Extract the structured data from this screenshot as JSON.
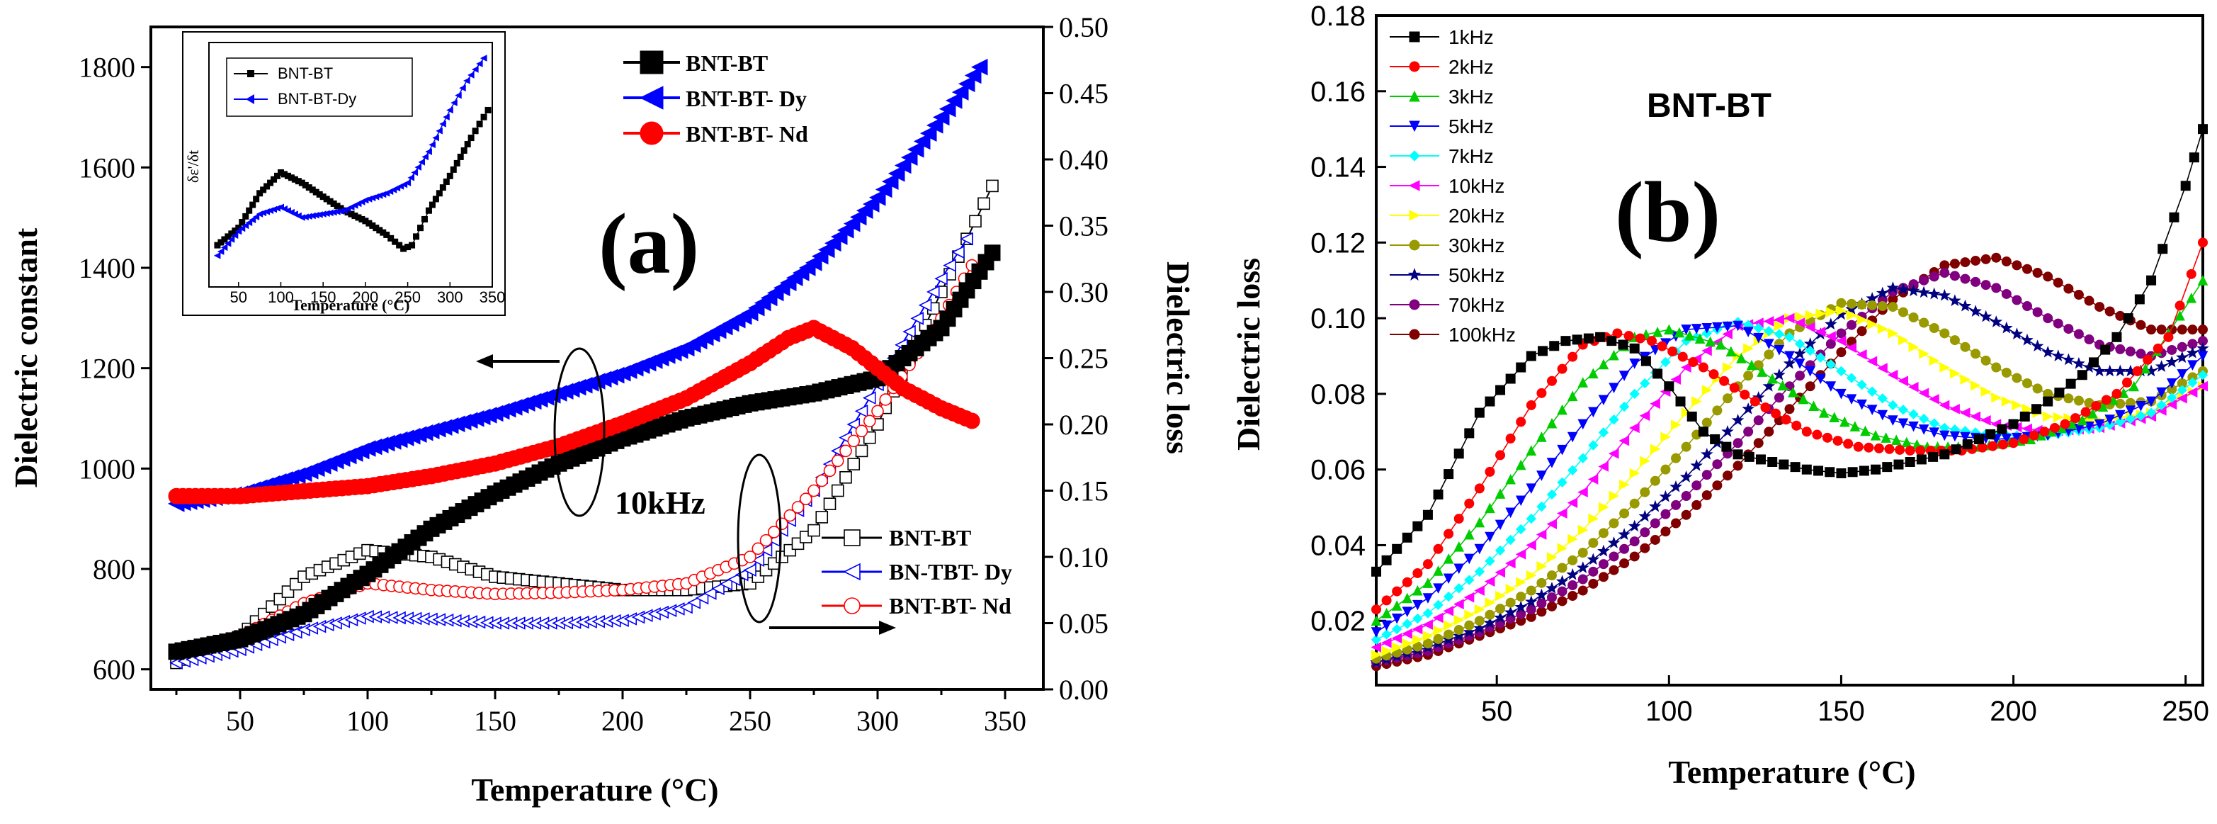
{
  "chart_data": [
    {
      "id": "a",
      "type": "line",
      "panel_label": "(a)",
      "xlabel": "Temperature (°C)",
      "ylabel": "Dielectric constant",
      "y2label": "Dielectric loss",
      "xlim": [
        15,
        365
      ],
      "ylim": [
        560,
        1880
      ],
      "y2lim": [
        0,
        0.5
      ],
      "xticks": [
        "50",
        "100",
        "150",
        "200",
        "250",
        "300",
        "350"
      ],
      "yticks": [
        "600",
        "800",
        "1000",
        "1200",
        "1400",
        "1600",
        "1800"
      ],
      "y2ticks": [
        "0.00",
        "0.05",
        "0.10",
        "0.15",
        "0.20",
        "0.25",
        "0.30",
        "0.35",
        "0.40",
        "0.45",
        "0.50"
      ],
      "annotation": "10kHz",
      "legend_constant": [
        "BNT-BT",
        "BNT-BT- Dy",
        "BNT-BT- Nd"
      ],
      "legend_loss": [
        "BNT-BT",
        "BN-TBT- Dy",
        "BNT-BT- Nd"
      ],
      "series_constant": [
        {
          "name": "BNT-BT",
          "color": "#000000",
          "marker": "square-filled",
          "x": [
            25,
            50,
            75,
            100,
            125,
            150,
            175,
            200,
            225,
            250,
            275,
            300,
            325,
            345
          ],
          "y": [
            635,
            660,
            710,
            790,
            880,
            950,
            1010,
            1060,
            1100,
            1130,
            1150,
            1180,
            1280,
            1430
          ]
        },
        {
          "name": "BNT-BT- Dy",
          "color": "#0000ff",
          "marker": "triangle-left-filled",
          "x": [
            25,
            50,
            75,
            100,
            125,
            150,
            175,
            200,
            225,
            250,
            275,
            300,
            325,
            340
          ],
          "y": [
            930,
            950,
            990,
            1040,
            1075,
            1110,
            1150,
            1190,
            1240,
            1310,
            1410,
            1540,
            1700,
            1800
          ]
        },
        {
          "name": "BNT-BT- Nd",
          "color": "#ff0000",
          "marker": "circle-filled",
          "x": [
            25,
            50,
            75,
            100,
            125,
            150,
            175,
            200,
            225,
            250,
            265,
            275,
            290,
            310,
            325,
            337
          ],
          "y": [
            945,
            945,
            955,
            965,
            985,
            1010,
            1045,
            1090,
            1140,
            1210,
            1260,
            1280,
            1240,
            1160,
            1120,
            1095
          ]
        }
      ],
      "series_loss": [
        {
          "name": "BNT-BT",
          "color": "#000000",
          "marker": "square-open",
          "x": [
            25,
            50,
            75,
            100,
            125,
            150,
            175,
            200,
            225,
            250,
            275,
            300,
            325,
            345
          ],
          "y": [
            0.02,
            0.04,
            0.085,
            0.105,
            0.1,
            0.085,
            0.08,
            0.075,
            0.075,
            0.08,
            0.12,
            0.2,
            0.3,
            0.38
          ]
        },
        {
          "name": "BN-TBT- Dy",
          "color": "#0000ff",
          "marker": "triangle-left-open",
          "x": [
            25,
            50,
            75,
            100,
            125,
            150,
            175,
            200,
            225,
            250,
            275,
            300,
            325,
            335
          ],
          "y": [
            0.02,
            0.03,
            0.045,
            0.055,
            0.053,
            0.05,
            0.05,
            0.052,
            0.062,
            0.09,
            0.15,
            0.23,
            0.31,
            0.34
          ]
        },
        {
          "name": "BNT-BT- Nd",
          "color": "#ff0000",
          "marker": "circle-open",
          "x": [
            25,
            50,
            75,
            100,
            125,
            150,
            175,
            200,
            225,
            250,
            275,
            300,
            325,
            337
          ],
          "y": [
            0.028,
            0.04,
            0.065,
            0.08,
            0.075,
            0.072,
            0.073,
            0.075,
            0.08,
            0.1,
            0.15,
            0.21,
            0.28,
            0.32
          ]
        }
      ],
      "inset": {
        "xlabel": "Temperature (°C)",
        "ylabel": "δε'/δt",
        "xlim": [
          15,
          350
        ],
        "xticks": [
          "50",
          "100",
          "150",
          "200",
          "250",
          "300",
          "350"
        ],
        "legend": [
          "BNT-BT",
          "BNT-BT-Dy"
        ],
        "series": [
          {
            "name": "BNT-BT",
            "color": "#000000",
            "x": [
              25,
              50,
              75,
              100,
              125,
              150,
              175,
              200,
              225,
              245,
              255,
              275,
              300,
              325,
              345
            ],
            "y": [
              0.2,
              0.3,
              0.5,
              0.62,
              0.56,
              0.48,
              0.4,
              0.34,
              0.26,
              0.18,
              0.2,
              0.4,
              0.6,
              0.82,
              0.98
            ]
          },
          {
            "name": "BNT-BT-Dy",
            "color": "#0000ff",
            "x": [
              25,
              50,
              75,
              100,
              125,
              150,
              175,
              200,
              225,
              250,
              275,
              300,
              320,
              340
            ],
            "y": [
              0.14,
              0.28,
              0.38,
              0.42,
              0.36,
              0.38,
              0.4,
              0.46,
              0.5,
              0.56,
              0.74,
              0.98,
              1.15,
              1.28
            ]
          }
        ]
      }
    },
    {
      "id": "b",
      "type": "line",
      "panel_label": "(b)",
      "title": "BNT-BT",
      "xlabel": "Temperature (°C)",
      "ylabel": "Dielectric loss",
      "xlim": [
        15,
        255
      ],
      "ylim": [
        0.003,
        0.18
      ],
      "xticks": [
        "50",
        "100",
        "150",
        "200",
        "250"
      ],
      "yticks": [
        "0.02",
        "0.04",
        "0.06",
        "0.08",
        "0.10",
        "0.12",
        "0.14",
        "0.16",
        "0.18"
      ],
      "series": [
        {
          "name": "1kHz",
          "color": "#000000",
          "marker": "square",
          "x": [
            15,
            30,
            45,
            60,
            70,
            80,
            90,
            100,
            110,
            120,
            130,
            140,
            150,
            160,
            170,
            180,
            190,
            200,
            210,
            220,
            230,
            240,
            250,
            255
          ],
          "y": [
            0.033,
            0.048,
            0.075,
            0.09,
            0.094,
            0.095,
            0.092,
            0.082,
            0.07,
            0.064,
            0.062,
            0.06,
            0.059,
            0.06,
            0.062,
            0.064,
            0.068,
            0.072,
            0.078,
            0.085,
            0.095,
            0.11,
            0.135,
            0.15
          ]
        },
        {
          "name": "2kHz",
          "color": "#ff0000",
          "marker": "circle",
          "x": [
            15,
            30,
            45,
            60,
            75,
            85,
            95,
            110,
            125,
            140,
            155,
            170,
            185,
            200,
            215,
            230,
            245,
            255
          ],
          "y": [
            0.023,
            0.035,
            0.055,
            0.077,
            0.093,
            0.096,
            0.094,
            0.087,
            0.078,
            0.07,
            0.066,
            0.065,
            0.065,
            0.067,
            0.072,
            0.08,
            0.095,
            0.12
          ]
        },
        {
          "name": "3kHz",
          "color": "#00cc00",
          "marker": "triangle-up",
          "x": [
            15,
            30,
            45,
            60,
            75,
            90,
            100,
            115,
            130,
            145,
            160,
            175,
            190,
            205,
            220,
            235,
            255
          ],
          "y": [
            0.02,
            0.03,
            0.046,
            0.065,
            0.083,
            0.095,
            0.097,
            0.093,
            0.084,
            0.075,
            0.069,
            0.066,
            0.066,
            0.068,
            0.073,
            0.082,
            0.11
          ]
        },
        {
          "name": "5kHz",
          "color": "#0000ff",
          "marker": "triangle-down",
          "x": [
            15,
            30,
            45,
            60,
            75,
            90,
            105,
            120,
            135,
            150,
            165,
            180,
            195,
            210,
            225,
            240,
            255
          ],
          "y": [
            0.017,
            0.026,
            0.039,
            0.055,
            0.072,
            0.088,
            0.097,
            0.098,
            0.09,
            0.08,
            0.073,
            0.069,
            0.068,
            0.069,
            0.072,
            0.078,
            0.09
          ]
        },
        {
          "name": "7kHz",
          "color": "#00ffff",
          "marker": "diamond",
          "x": [
            15,
            30,
            45,
            60,
            75,
            90,
            105,
            120,
            135,
            150,
            165,
            180,
            195,
            210,
            225,
            240,
            255
          ],
          "y": [
            0.015,
            0.022,
            0.033,
            0.047,
            0.063,
            0.08,
            0.094,
            0.099,
            0.095,
            0.086,
            0.077,
            0.071,
            0.069,
            0.069,
            0.071,
            0.075,
            0.085
          ]
        },
        {
          "name": "10kHz",
          "color": "#ff00ff",
          "marker": "triangle-left",
          "x": [
            15,
            30,
            45,
            60,
            75,
            90,
            105,
            120,
            135,
            150,
            165,
            180,
            195,
            210,
            225,
            240,
            255
          ],
          "y": [
            0.013,
            0.019,
            0.028,
            0.04,
            0.054,
            0.071,
            0.087,
            0.098,
            0.1,
            0.094,
            0.085,
            0.077,
            0.072,
            0.07,
            0.071,
            0.074,
            0.082
          ]
        },
        {
          "name": "20kHz",
          "color": "#ffff00",
          "marker": "triangle-right",
          "x": [
            15,
            30,
            45,
            60,
            75,
            90,
            105,
            120,
            135,
            150,
            165,
            180,
            195,
            210,
            225,
            240,
            255
          ],
          "y": [
            0.011,
            0.016,
            0.023,
            0.032,
            0.044,
            0.059,
            0.075,
            0.09,
            0.1,
            0.102,
            0.096,
            0.087,
            0.079,
            0.074,
            0.073,
            0.075,
            0.082
          ]
        },
        {
          "name": "30kHz",
          "color": "#999900",
          "marker": "circle",
          "x": [
            15,
            30,
            45,
            60,
            75,
            90,
            105,
            120,
            135,
            150,
            165,
            180,
            195,
            210,
            225,
            240,
            255
          ],
          "y": [
            0.01,
            0.014,
            0.02,
            0.028,
            0.038,
            0.051,
            0.066,
            0.082,
            0.096,
            0.104,
            0.103,
            0.096,
            0.087,
            0.08,
            0.077,
            0.078,
            0.086
          ]
        },
        {
          "name": "50kHz",
          "color": "#000080",
          "marker": "star",
          "x": [
            15,
            30,
            45,
            60,
            75,
            90,
            105,
            120,
            135,
            150,
            165,
            180,
            195,
            210,
            225,
            240,
            255
          ],
          "y": [
            0.009,
            0.013,
            0.018,
            0.025,
            0.034,
            0.045,
            0.058,
            0.073,
            0.088,
            0.101,
            0.108,
            0.106,
            0.099,
            0.091,
            0.086,
            0.086,
            0.092
          ]
        },
        {
          "name": "70kHz",
          "color": "#800080",
          "marker": "circle",
          "x": [
            15,
            30,
            45,
            60,
            75,
            90,
            105,
            120,
            135,
            150,
            165,
            180,
            195,
            210,
            225,
            240,
            255
          ],
          "y": [
            0.009,
            0.012,
            0.017,
            0.023,
            0.031,
            0.041,
            0.053,
            0.067,
            0.082,
            0.096,
            0.107,
            0.112,
            0.108,
            0.1,
            0.093,
            0.09,
            0.094
          ]
        },
        {
          "name": "100kHz",
          "color": "#800000",
          "marker": "circle",
          "x": [
            15,
            30,
            45,
            60,
            75,
            90,
            105,
            120,
            135,
            150,
            165,
            180,
            195,
            210,
            225,
            240,
            255
          ],
          "y": [
            0.008,
            0.011,
            0.016,
            0.021,
            0.028,
            0.037,
            0.048,
            0.061,
            0.076,
            0.091,
            0.105,
            0.114,
            0.116,
            0.111,
            0.103,
            0.097,
            0.097
          ]
        }
      ]
    }
  ]
}
